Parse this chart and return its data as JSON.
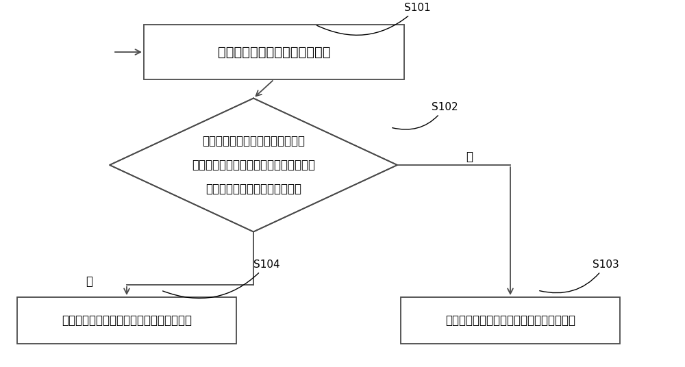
{
  "bg_color": "#ffffff",
  "box_color": "#ffffff",
  "box_edge_color": "#4a4a4a",
  "diamond_color": "#ffffff",
  "diamond_edge_color": "#4a4a4a",
  "arrow_color": "#4a4a4a",
  "label_color": "#000000",
  "step_label_color": "#000000",
  "box1_text": "当电机停机时，对电机进行消磁",
  "diamond_text_line1": "在电机在消磁过程中，对电机的",
  "diamond_text_line2": "直流母线上的回馈电流进行检测，并判断",
  "diamond_text_line3": "回馈电流是否大于第一预设电流值",
  "box3_text": "在预设时间内关闭变频器的上下桥臂开关管",
  "box4_text": "继续对电机进行消磁处理直至电机完成消磁",
  "label_S101": "S101",
  "label_S102": "S102",
  "label_S103": "S103",
  "label_S104": "S104",
  "yes_label": "是",
  "no_label": "否",
  "fontsize_main": 14,
  "fontsize_label": 12,
  "fontsize_step": 11,
  "lw": 1.3
}
